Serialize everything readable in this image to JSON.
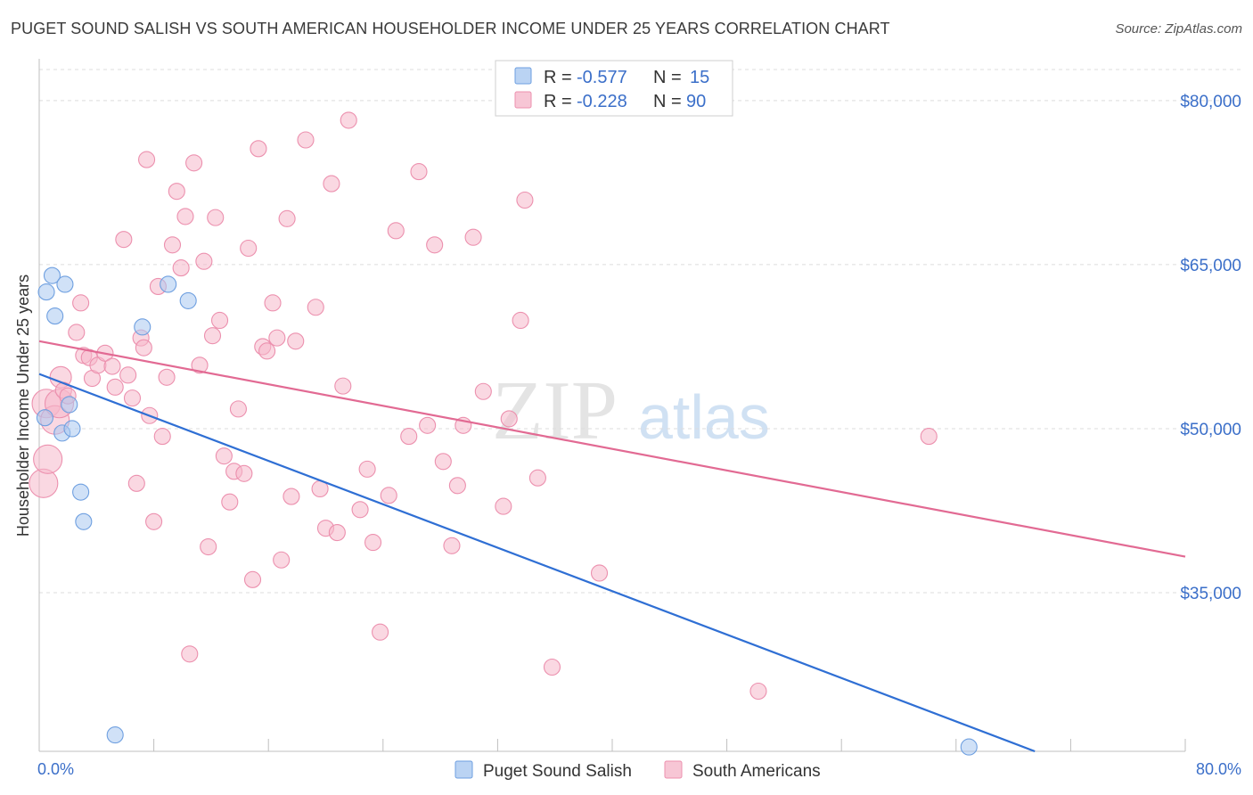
{
  "header": {
    "title": "PUGET SOUND SALISH VS SOUTH AMERICAN HOUSEHOLDER INCOME UNDER 25 YEARS CORRELATION CHART",
    "source": "Source: ZipAtlas.com"
  },
  "watermark": {
    "zip": "ZIP",
    "atlas": "atlas"
  },
  "legend_top": {
    "r_label": "R =",
    "n_label": "N =",
    "rows": [
      {
        "r": "-0.577",
        "n": "15",
        "color": "#a9c8f0"
      },
      {
        "r": "-0.228",
        "n": "90",
        "color": "#f5b8cb"
      }
    ]
  },
  "legend_bottom": [
    {
      "label": "Puget Sound Salish",
      "color": "#a9c8f0"
    },
    {
      "label": "South Americans",
      "color": "#f5b8cb"
    }
  ],
  "chart_data": {
    "type": "scatter",
    "title": "PUGET SOUND SALISH VS SOUTH AMERICAN HOUSEHOLDER INCOME UNDER 25 YEARS CORRELATION CHART",
    "xlabel": "",
    "ylabel": "Householder Income Under 25 years",
    "xlim": [
      0,
      80
    ],
    "ylim": [
      20500,
      83000
    ],
    "x_tick_labels": [
      "0.0%",
      "80.0%"
    ],
    "y_ticks": [
      35000,
      50000,
      65000,
      80000
    ],
    "y_tick_labels": [
      "$35,000",
      "$50,000",
      "$65,000",
      "$80,000"
    ],
    "grid": true,
    "series": [
      {
        "name": "Puget Sound Salish",
        "color": "#a9c8f0",
        "stroke": "#6e9fe0",
        "trend_color": "#2f6fd4",
        "trend": {
          "x": [
            0,
            69.5
          ],
          "y": [
            55000,
            20500
          ]
        },
        "points": [
          [
            0.4,
            51000
          ],
          [
            0.5,
            62500
          ],
          [
            0.9,
            64000
          ],
          [
            1.1,
            60300
          ],
          [
            1.6,
            49600
          ],
          [
            1.8,
            63200
          ],
          [
            2.1,
            52200
          ],
          [
            2.3,
            50000
          ],
          [
            2.9,
            44200
          ],
          [
            3.1,
            41500
          ],
          [
            5.3,
            22000
          ],
          [
            7.2,
            59300
          ],
          [
            9.0,
            63200
          ],
          [
            10.4,
            61700
          ],
          [
            64.9,
            20900
          ]
        ]
      },
      {
        "name": "South Americans",
        "color": "#f5b8cb",
        "stroke": "#ec90ae",
        "trend_color": "#e26a93",
        "trend": {
          "x": [
            0,
            80
          ],
          "y": [
            58000,
            38300
          ]
        },
        "points": [
          [
            0.3,
            45000
          ],
          [
            0.5,
            52300
          ],
          [
            0.6,
            47200
          ],
          [
            1.1,
            50800
          ],
          [
            1.4,
            52300
          ],
          [
            1.5,
            54700
          ],
          [
            1.7,
            53500
          ],
          [
            2.0,
            53000
          ],
          [
            2.6,
            58800
          ],
          [
            2.9,
            61500
          ],
          [
            3.1,
            56700
          ],
          [
            3.5,
            56500
          ],
          [
            3.7,
            54600
          ],
          [
            4.1,
            55800
          ],
          [
            4.6,
            56900
          ],
          [
            5.1,
            55700
          ],
          [
            5.3,
            53800
          ],
          [
            5.9,
            67300
          ],
          [
            6.2,
            54900
          ],
          [
            6.5,
            52800
          ],
          [
            6.8,
            45000
          ],
          [
            7.1,
            58300
          ],
          [
            7.3,
            57400
          ],
          [
            7.5,
            74600
          ],
          [
            7.7,
            51200
          ],
          [
            8.0,
            41500
          ],
          [
            8.3,
            63000
          ],
          [
            8.6,
            49300
          ],
          [
            8.9,
            54700
          ],
          [
            9.3,
            66800
          ],
          [
            9.6,
            71700
          ],
          [
            9.9,
            64700
          ],
          [
            10.2,
            69400
          ],
          [
            10.5,
            29400
          ],
          [
            10.8,
            74300
          ],
          [
            11.2,
            55800
          ],
          [
            11.5,
            65300
          ],
          [
            11.8,
            39200
          ],
          [
            12.1,
            58500
          ],
          [
            12.3,
            69300
          ],
          [
            12.6,
            59900
          ],
          [
            12.9,
            47500
          ],
          [
            13.3,
            43300
          ],
          [
            13.6,
            46100
          ],
          [
            13.9,
            51800
          ],
          [
            14.3,
            45900
          ],
          [
            14.6,
            66500
          ],
          [
            14.9,
            36200
          ],
          [
            15.3,
            75600
          ],
          [
            15.6,
            57500
          ],
          [
            15.9,
            57100
          ],
          [
            16.3,
            61500
          ],
          [
            16.6,
            58300
          ],
          [
            16.9,
            38000
          ],
          [
            17.3,
            69200
          ],
          [
            17.6,
            43800
          ],
          [
            17.9,
            58000
          ],
          [
            18.6,
            76400
          ],
          [
            19.3,
            61100
          ],
          [
            19.6,
            44500
          ],
          [
            20.0,
            40900
          ],
          [
            20.4,
            72400
          ],
          [
            20.8,
            40500
          ],
          [
            21.2,
            53900
          ],
          [
            21.6,
            78200
          ],
          [
            22.4,
            42600
          ],
          [
            22.9,
            46300
          ],
          [
            23.3,
            39600
          ],
          [
            23.8,
            31400
          ],
          [
            24.4,
            43900
          ],
          [
            24.9,
            68100
          ],
          [
            25.8,
            49300
          ],
          [
            26.5,
            73500
          ],
          [
            27.1,
            50300
          ],
          [
            27.6,
            66800
          ],
          [
            28.2,
            47000
          ],
          [
            28.8,
            39300
          ],
          [
            29.2,
            44800
          ],
          [
            29.6,
            50300
          ],
          [
            30.3,
            67500
          ],
          [
            31.0,
            53400
          ],
          [
            32.4,
            42900
          ],
          [
            32.8,
            50900
          ],
          [
            33.6,
            59900
          ],
          [
            33.9,
            70900
          ],
          [
            34.8,
            45500
          ],
          [
            35.8,
            28200
          ],
          [
            39.1,
            36800
          ],
          [
            50.2,
            26000
          ],
          [
            62.1,
            49300
          ]
        ]
      }
    ]
  }
}
